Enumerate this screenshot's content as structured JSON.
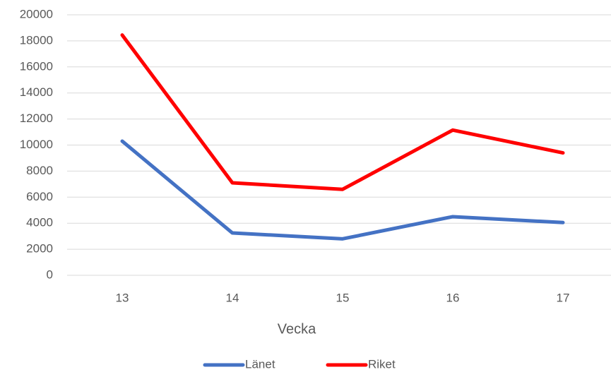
{
  "chart_data": {
    "type": "line",
    "x_label": "Vecka",
    "categories": [
      "13",
      "14",
      "15",
      "16",
      "17"
    ],
    "series": [
      {
        "name": "Länet",
        "color": "#4472c4",
        "values": [
          10300,
          3250,
          2800,
          4500,
          4050
        ]
      },
      {
        "name": "Riket",
        "color": "#ff0000",
        "values": [
          18450,
          7100,
          6600,
          11150,
          9400
        ]
      }
    ],
    "ylim": [
      0,
      20000
    ],
    "yticks": [
      0,
      2000,
      4000,
      6000,
      8000,
      10000,
      12000,
      14000,
      16000,
      18000,
      20000
    ],
    "grid": true,
    "legend": "bottom"
  }
}
